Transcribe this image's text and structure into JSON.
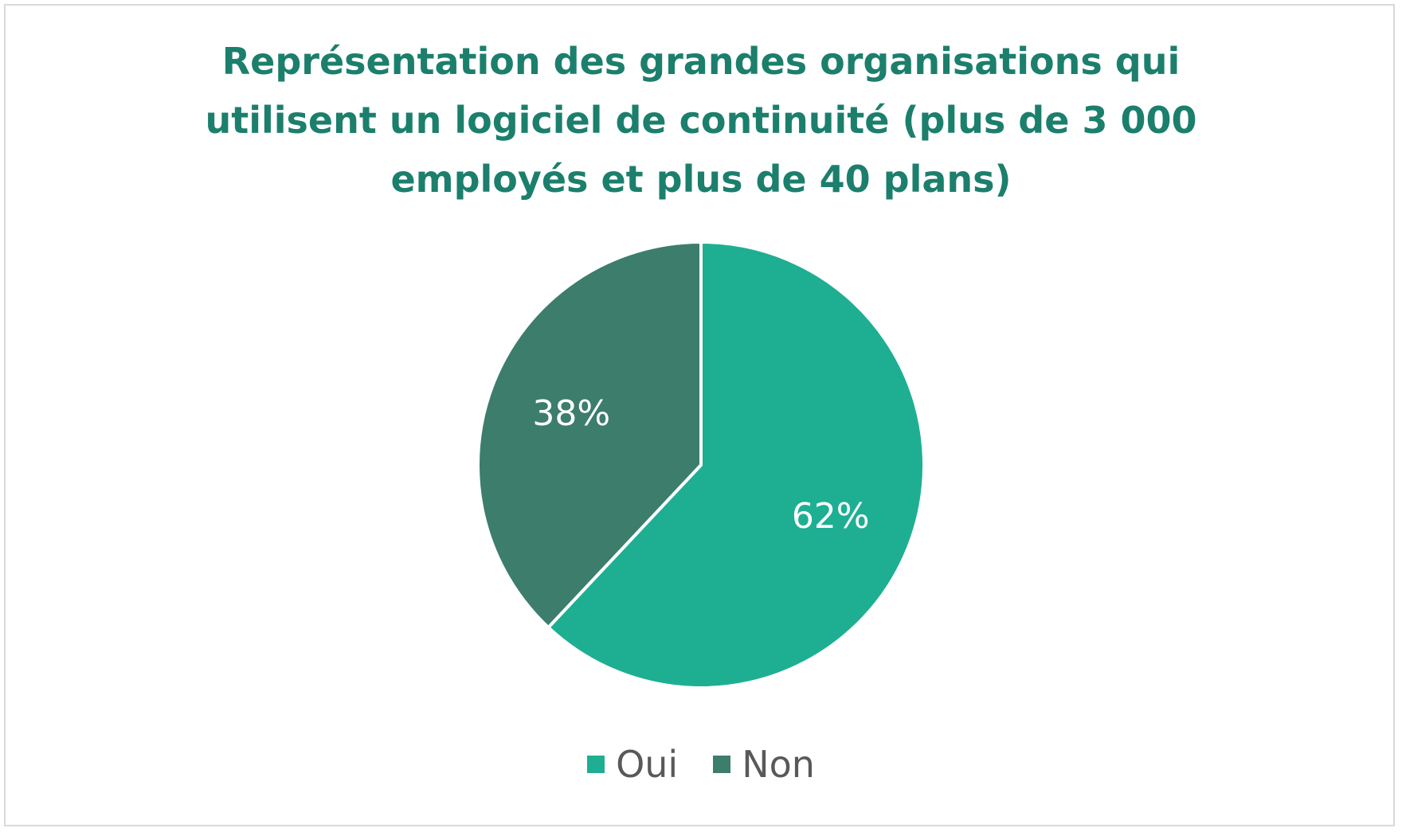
{
  "chart_data": {
    "type": "pie",
    "title": "Représentation des grandes organisations qui utilisent un logiciel de continuité (plus de 3 000 employés et plus de 40 plans)",
    "categories": [
      "Oui",
      "Non"
    ],
    "values": [
      62,
      38
    ],
    "data_labels": [
      "62%",
      "38%"
    ],
    "colors": [
      "#1eaf93",
      "#3c7d6c"
    ],
    "title_color": "#1b7f6c",
    "label_color": "#ffffff",
    "legend_text_color": "#595959",
    "legend_placement": "bottom",
    "start_angle_deg": 0,
    "direction": "clockwise"
  }
}
